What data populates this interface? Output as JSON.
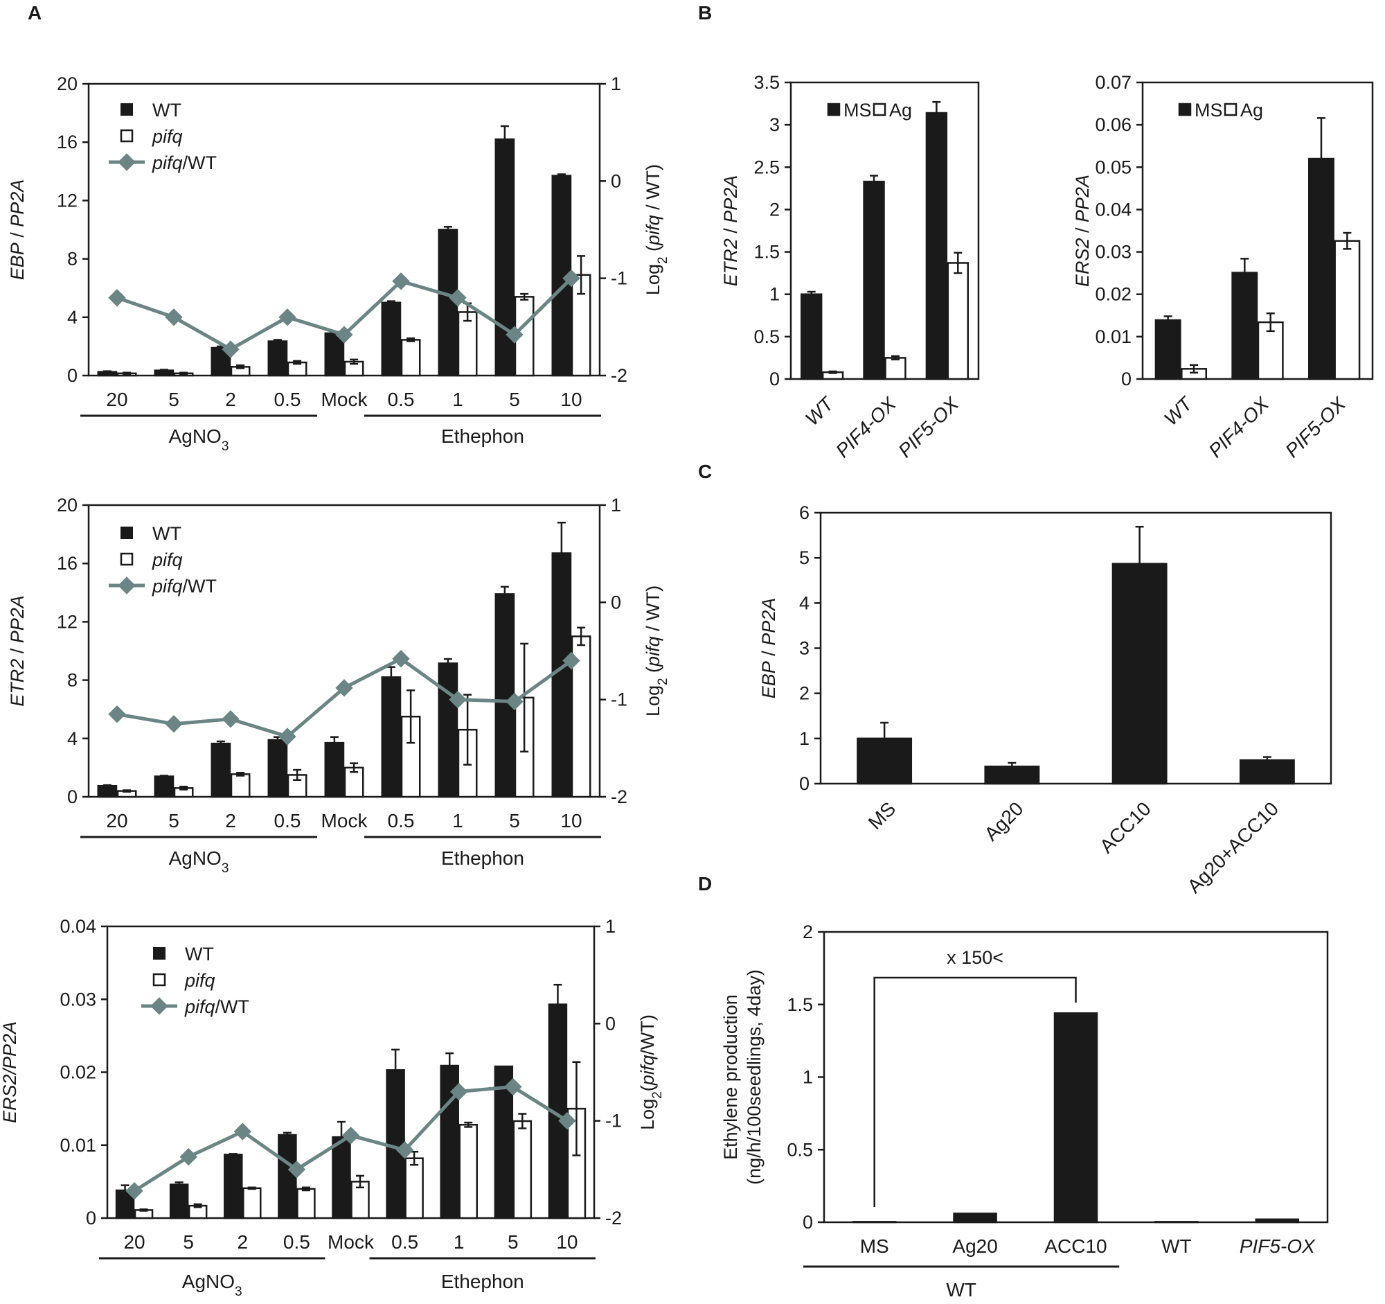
{
  "figure": {
    "panels": [
      {
        "letter": "A"
      },
      {
        "letter": "B"
      },
      {
        "letter": "C"
      },
      {
        "letter": "D"
      }
    ]
  },
  "chart_data": [
    {
      "id": "A1",
      "panel": "A",
      "type": "bar",
      "ylabel_parts": [
        [
          "EBP",
          true
        ],
        [
          " / ",
          false
        ],
        [
          "PP2A",
          true
        ]
      ],
      "y2label": "Log2 (pifq / WT)",
      "y2label_parts": [
        [
          "Log",
          false
        ],
        [
          "2",
          false,
          "sub"
        ],
        [
          " (",
          false
        ],
        [
          "pifq",
          true
        ],
        [
          " / WT)",
          false
        ]
      ],
      "ylim": [
        0,
        20
      ],
      "yticks": [
        0,
        4,
        8,
        12,
        16,
        20
      ],
      "ytick_labels": [
        "0",
        "4",
        "8",
        "12",
        "16",
        "20"
      ],
      "y2lim": [
        -2,
        1
      ],
      "y2ticks": [
        -2,
        -1,
        0,
        1
      ],
      "y2tick_labels": [
        "-2",
        "-1",
        "0",
        "1"
      ],
      "categories": [
        "20",
        "5",
        "2",
        "0.5",
        "Mock",
        "0.5",
        "1",
        "5",
        "10"
      ],
      "groups": [
        {
          "label": "AgNO3",
          "label_parts": [
            [
              "AgNO",
              false
            ],
            [
              "3",
              false,
              "sub"
            ]
          ],
          "from": 0,
          "to": 3
        },
        {
          "label": "Ethephon",
          "label_parts": [
            [
              "Ethephon",
              false
            ]
          ],
          "from": 5,
          "to": 8
        }
      ],
      "legend": [
        {
          "kind": "bar-filled",
          "parts": [
            [
              "WT",
              false
            ]
          ]
        },
        {
          "kind": "bar-open",
          "parts": [
            [
              "pifq",
              true
            ]
          ]
        },
        {
          "kind": "line",
          "parts": [
            [
              "pifq",
              true
            ],
            [
              "/WT",
              false
            ]
          ]
        }
      ],
      "legend_pos": "top-left",
      "series": [
        {
          "name": "WT",
          "style": "filled",
          "values": [
            0.25,
            0.35,
            1.9,
            2.35,
            2.9,
            5.0,
            10.0,
            16.2,
            13.7
          ],
          "errors": [
            0.05,
            0.05,
            0.1,
            0.1,
            0.1,
            0.1,
            0.2,
            0.9,
            0.1
          ]
        },
        {
          "name": "pifq",
          "style": "open",
          "values": [
            0.15,
            0.15,
            0.6,
            0.9,
            0.95,
            2.45,
            4.35,
            5.4,
            6.9
          ],
          "errors": [
            0.05,
            0.05,
            0.1,
            0.1,
            0.15,
            0.1,
            0.6,
            0.2,
            1.3
          ]
        },
        {
          "name": "pifq/WT",
          "style": "line",
          "axis": "right",
          "values": [
            -1.2,
            -1.4,
            -1.73,
            -1.4,
            -1.58,
            -1.03,
            -1.2,
            -1.58,
            -1.0
          ]
        }
      ]
    },
    {
      "id": "A2",
      "panel": "A",
      "type": "bar",
      "ylabel_parts": [
        [
          "ETR2",
          true
        ],
        [
          " / ",
          false
        ],
        [
          "PP2A",
          true
        ]
      ],
      "y2label": "Log2 (pifq / WT)",
      "y2label_parts": [
        [
          "Log",
          false
        ],
        [
          "2",
          false,
          "sub"
        ],
        [
          " (",
          false
        ],
        [
          "pifq",
          true
        ],
        [
          " / WT)",
          false
        ]
      ],
      "ylim": [
        0,
        20
      ],
      "yticks": [
        0,
        4,
        8,
        12,
        16,
        20
      ],
      "ytick_labels": [
        "0",
        "4",
        "8",
        "12",
        "16",
        "20"
      ],
      "y2lim": [
        -2,
        1
      ],
      "y2ticks": [
        -2,
        -1,
        0,
        1
      ],
      "y2tick_labels": [
        "-2",
        "-1",
        "0",
        "1"
      ],
      "categories": [
        "20",
        "5",
        "2",
        "0.5",
        "Mock",
        "0.5",
        "1",
        "5",
        "10"
      ],
      "groups": [
        {
          "label": "AgNO3",
          "label_parts": [
            [
              "AgNO",
              false
            ],
            [
              "3",
              false,
              "sub"
            ]
          ],
          "from": 0,
          "to": 3
        },
        {
          "label": "Ethephon",
          "label_parts": [
            [
              "Ethephon",
              false
            ]
          ],
          "from": 5,
          "to": 8
        }
      ],
      "legend": [
        {
          "kind": "bar-filled",
          "parts": [
            [
              "WT",
              false
            ]
          ]
        },
        {
          "kind": "bar-open",
          "parts": [
            [
              "pifq",
              true
            ]
          ]
        },
        {
          "kind": "line",
          "parts": [
            [
              "pifq",
              true
            ],
            [
              "/WT",
              false
            ]
          ]
        }
      ],
      "legend_pos": "top-left",
      "series": [
        {
          "name": "WT",
          "style": "filled",
          "values": [
            0.75,
            1.4,
            3.65,
            3.9,
            3.7,
            8.2,
            9.15,
            13.9,
            16.7
          ],
          "errors": [
            0.05,
            0.05,
            0.15,
            0.2,
            0.4,
            0.7,
            0.3,
            0.5,
            2.1
          ]
        },
        {
          "name": "pifq",
          "style": "open",
          "values": [
            0.4,
            0.6,
            1.55,
            1.5,
            2.0,
            5.5,
            4.6,
            6.8,
            11.0
          ],
          "errors": [
            0.05,
            0.1,
            0.1,
            0.35,
            0.3,
            1.8,
            2.4,
            3.7,
            0.6
          ]
        },
        {
          "name": "pifq/WT",
          "style": "line",
          "axis": "right",
          "values": [
            -1.15,
            -1.25,
            -1.2,
            -1.38,
            -0.88,
            -0.58,
            -1.0,
            -1.02,
            -0.6
          ]
        }
      ]
    },
    {
      "id": "A3",
      "panel": "A",
      "type": "bar",
      "ylabel_parts": [
        [
          "ERS2/PP2A",
          true
        ]
      ],
      "y2label": "Log2(pifq/WT)",
      "y2label_parts": [
        [
          "Log",
          false
        ],
        [
          "2",
          false,
          "sub"
        ],
        [
          "(",
          false
        ],
        [
          "pifq",
          true
        ],
        [
          "/WT)",
          false
        ]
      ],
      "ylim": [
        0,
        0.04
      ],
      "yticks": [
        0,
        0.01,
        0.02,
        0.03,
        0.04
      ],
      "ytick_labels": [
        "0",
        "0.01",
        "0.02",
        "0.03",
        "0.04"
      ],
      "y2lim": [
        -2,
        1
      ],
      "y2ticks": [
        -2,
        -1,
        0,
        1
      ],
      "y2tick_labels": [
        "-2",
        "-1",
        "0",
        "1"
      ],
      "categories": [
        "20",
        "5",
        "2",
        "0.5",
        "Mock",
        "0.5",
        "1",
        "5",
        "10"
      ],
      "groups": [
        {
          "label": "AgNO3",
          "label_parts": [
            [
              "AgNO",
              false
            ],
            [
              "3",
              false,
              "sub"
            ]
          ],
          "from": 0,
          "to": 3
        },
        {
          "label": "Ethephon",
          "label_parts": [
            [
              "Ethephon",
              false
            ]
          ],
          "from": 5,
          "to": 8
        }
      ],
      "legend": [
        {
          "kind": "bar-filled",
          "parts": [
            [
              "WT",
              false
            ]
          ]
        },
        {
          "kind": "bar-open",
          "parts": [
            [
              "pifq",
              true
            ]
          ]
        },
        {
          "kind": "line",
          "parts": [
            [
              "pifq",
              true
            ],
            [
              "/WT",
              false
            ]
          ]
        }
      ],
      "legend_pos": "top-left",
      "series": [
        {
          "name": "WT",
          "style": "filled",
          "values": [
            0.0038,
            0.0046,
            0.0087,
            0.0114,
            0.0111,
            0.0203,
            0.0209,
            0.0208,
            0.0293
          ],
          "errors": [
            0.0007,
            0.0003,
            0.0001,
            0.0003,
            0.0021,
            0.0028,
            0.0017,
            0.0,
            0.0027
          ]
        },
        {
          "name": "pifq",
          "style": "open",
          "values": [
            0.0011,
            0.0017,
            0.0041,
            0.004,
            0.005,
            0.0082,
            0.0128,
            0.0133,
            0.015
          ],
          "errors": [
            0.0001,
            0.0002,
            0.0001,
            0.0002,
            0.0008,
            0.0009,
            0.0003,
            0.001,
            0.0064
          ]
        },
        {
          "name": "pifq/WT",
          "style": "line",
          "axis": "right",
          "values": [
            -1.72,
            -1.37,
            -1.11,
            -1.5,
            -1.15,
            -1.3,
            -0.7,
            -0.65,
            -1.0
          ]
        }
      ]
    },
    {
      "id": "B1",
      "panel": "B",
      "type": "bar",
      "ylabel_parts": [
        [
          "ETR2",
          true
        ],
        [
          " / ",
          false
        ],
        [
          "PP2A",
          true
        ]
      ],
      "ylim": [
        0,
        3.5
      ],
      "yticks": [
        0,
        0.5,
        1,
        1.5,
        2,
        2.5,
        3,
        3.5
      ],
      "ytick_labels": [
        "0",
        "0.5",
        "1",
        "1.5",
        "2",
        "2.5",
        "3",
        "3.5"
      ],
      "categories": [
        "WT",
        "PIF4-OX",
        "PIF5-OX"
      ],
      "legend": [
        {
          "kind": "bar-filled",
          "parts": [
            [
              "MS",
              false
            ]
          ]
        },
        {
          "kind": "bar-open",
          "parts": [
            [
              "Ag",
              false
            ]
          ]
        }
      ],
      "legend_pos": "top-left",
      "series": [
        {
          "name": "MS",
          "style": "filled",
          "values": [
            1.0,
            2.33,
            3.14
          ],
          "errors": [
            0.03,
            0.07,
            0.13
          ]
        },
        {
          "name": "Ag",
          "style": "open",
          "values": [
            0.08,
            0.25,
            1.37
          ],
          "errors": [
            0.01,
            0.02,
            0.12
          ]
        }
      ]
    },
    {
      "id": "B2",
      "panel": "B",
      "type": "bar",
      "ylabel_parts": [
        [
          "ERS2",
          true
        ],
        [
          " / ",
          false
        ],
        [
          "PP2A",
          true
        ]
      ],
      "ylim": [
        0,
        0.07
      ],
      "yticks": [
        0,
        0.01,
        0.02,
        0.03,
        0.04,
        0.05,
        0.06,
        0.07
      ],
      "ytick_labels": [
        "0",
        "0.01",
        "0.02",
        "0.03",
        "0.04",
        "0.05",
        "0.06",
        "0.07"
      ],
      "categories": [
        "WT",
        "PIF4-OX",
        "PIF5-OX"
      ],
      "legend": [
        {
          "kind": "bar-filled",
          "parts": [
            [
              "MS",
              false
            ]
          ]
        },
        {
          "kind": "bar-open",
          "parts": [
            [
              "Ag",
              false
            ]
          ]
        }
      ],
      "legend_pos": "top-left",
      "series": [
        {
          "name": "MS",
          "style": "filled",
          "values": [
            0.0139,
            0.0251,
            0.052
          ],
          "errors": [
            0.0009,
            0.0033,
            0.0096
          ]
        },
        {
          "name": "Ag",
          "style": "open",
          "values": [
            0.0024,
            0.0134,
            0.0326
          ],
          "errors": [
            0.0009,
            0.0021,
            0.0019
          ]
        }
      ]
    },
    {
      "id": "C",
      "panel": "C",
      "type": "bar",
      "ylabel_parts": [
        [
          "EBP",
          true
        ],
        [
          " / ",
          false
        ],
        [
          "PP2A",
          true
        ]
      ],
      "ylim": [
        0,
        6
      ],
      "yticks": [
        0,
        1,
        2,
        3,
        4,
        5,
        6
      ],
      "ytick_labels": [
        "0",
        "1",
        "2",
        "3",
        "4",
        "5",
        "6"
      ],
      "categories": [
        "MS",
        "Ag20",
        "ACC10",
        "Ag20+ACC10"
      ],
      "series": [
        {
          "name": "EBP/PP2A",
          "style": "filled",
          "values": [
            1.0,
            0.38,
            4.87,
            0.52
          ],
          "errors": [
            0.35,
            0.08,
            0.82,
            0.07
          ]
        }
      ]
    },
    {
      "id": "D",
      "panel": "D",
      "type": "bar",
      "ylabel_lines": [
        "Ethylene production",
        "(ng/h/100seedlings, 4day)"
      ],
      "ylim": [
        0,
        2
      ],
      "yticks": [
        0,
        0.5,
        1,
        1.5,
        2
      ],
      "ytick_labels": [
        "0",
        "0.5",
        "1",
        "1.5",
        "2"
      ],
      "categories": [
        "MS",
        "Ag20",
        "ACC10",
        "WT",
        "PIF5-OX"
      ],
      "category_italic": [
        false,
        false,
        false,
        false,
        true
      ],
      "group": {
        "label": "WT",
        "from": 0,
        "to": 2
      },
      "annotation": {
        "text": "x 150<",
        "from": 0,
        "to": 2
      },
      "series": [
        {
          "name": "Ethylene production",
          "style": "filled",
          "values": [
            0.003,
            0.06,
            1.44,
            0.003,
            0.02
          ],
          "errors": [
            0,
            0,
            0,
            0,
            0
          ]
        }
      ]
    }
  ]
}
